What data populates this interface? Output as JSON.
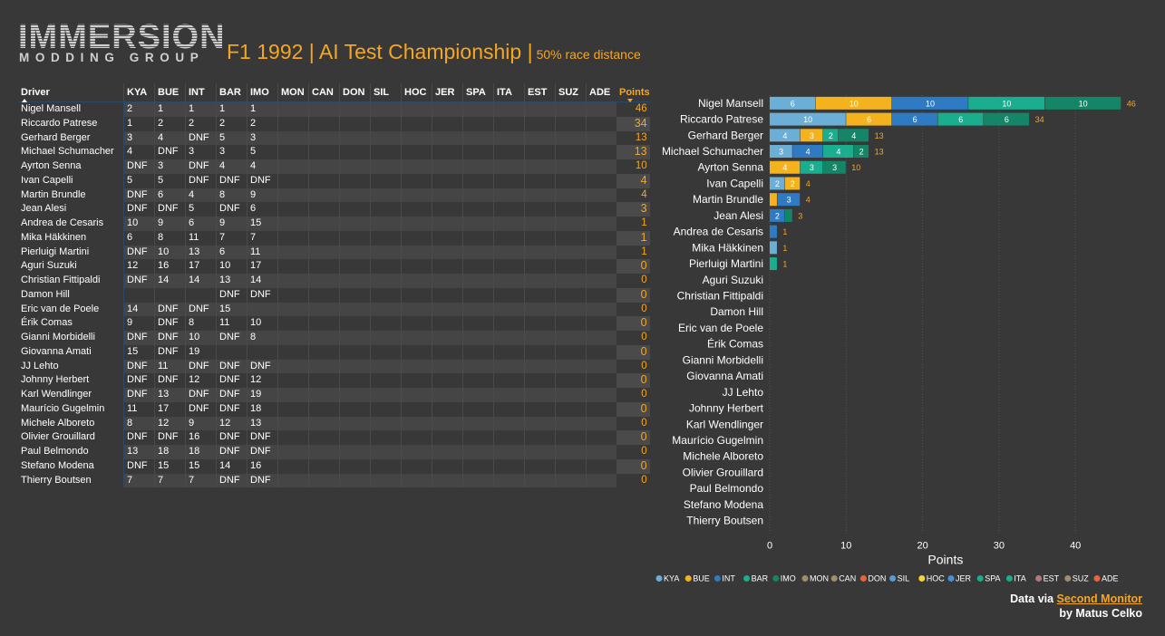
{
  "logo": {
    "line1": "IMMERSION",
    "line2": "MODDING GROUP"
  },
  "title": {
    "main": "F1 1992 | AI Test Championship |",
    "sub": "50% race distance"
  },
  "colors": {
    "accent": "#f5a623",
    "KYA": "#6baed6",
    "BUE": "#f5b21f",
    "INT": "#2e7bc4",
    "BAR": "#1aae8e",
    "IMO": "#148566",
    "MON": "#a08c6e",
    "CAN": "#a08c6e",
    "DON": "#e8643c",
    "SIL": "#5b9bd5",
    "HOC": "#f5d33c",
    "JER": "#4a90d9",
    "SPA": "#1aae8e",
    "ITA": "#1aae8e",
    "EST": "#b07a7a",
    "SUZ": "#a08c6e",
    "ADE": "#e8643c"
  },
  "table": {
    "driver_header": "Driver",
    "points_header": "Points",
    "races": [
      "KYA",
      "BUE",
      "INT",
      "BAR",
      "IMO",
      "MON",
      "CAN",
      "DON",
      "SIL",
      "HOC",
      "JER",
      "SPA",
      "ITA",
      "EST",
      "SUZ",
      "ADE"
    ],
    "rows": [
      {
        "driver": "Nigel Mansell",
        "results": [
          "2",
          "1",
          "1",
          "1",
          "1"
        ],
        "points": "46"
      },
      {
        "driver": "Riccardo Patrese",
        "results": [
          "1",
          "2",
          "2",
          "2",
          "2"
        ],
        "points": "34"
      },
      {
        "driver": "Gerhard Berger",
        "results": [
          "3",
          "4",
          "DNF",
          "5",
          "3"
        ],
        "points": "13"
      },
      {
        "driver": "Michael Schumacher",
        "results": [
          "4",
          "DNF",
          "3",
          "3",
          "5"
        ],
        "points": "13"
      },
      {
        "driver": "Ayrton Senna",
        "results": [
          "DNF",
          "3",
          "DNF",
          "4",
          "4"
        ],
        "points": "10"
      },
      {
        "driver": "Ivan Capelli",
        "results": [
          "5",
          "5",
          "DNF",
          "DNF",
          "DNF"
        ],
        "points": "4"
      },
      {
        "driver": "Martin Brundle",
        "results": [
          "DNF",
          "6",
          "4",
          "8",
          "9"
        ],
        "points": "4"
      },
      {
        "driver": "Jean Alesi",
        "results": [
          "DNF",
          "DNF",
          "5",
          "DNF",
          "6"
        ],
        "points": "3"
      },
      {
        "driver": "Andrea de Cesaris",
        "results": [
          "10",
          "9",
          "6",
          "9",
          "15"
        ],
        "points": "1"
      },
      {
        "driver": "Mika Häkkinen",
        "results": [
          "6",
          "8",
          "11",
          "7",
          "7"
        ],
        "points": "1"
      },
      {
        "driver": "Pierluigi Martini",
        "results": [
          "DNF",
          "10",
          "13",
          "6",
          "11"
        ],
        "points": "1"
      },
      {
        "driver": "Aguri Suzuki",
        "results": [
          "12",
          "16",
          "17",
          "10",
          "17"
        ],
        "points": "0"
      },
      {
        "driver": "Christian Fittipaldi",
        "results": [
          "DNF",
          "14",
          "14",
          "13",
          "14"
        ],
        "points": "0"
      },
      {
        "driver": "Damon Hill",
        "results": [
          "",
          "",
          "",
          "DNF",
          "DNF"
        ],
        "points": "0"
      },
      {
        "driver": "Eric van de Poele",
        "results": [
          "14",
          "DNF",
          "DNF",
          "15",
          ""
        ],
        "points": "0"
      },
      {
        "driver": "Érik Comas",
        "results": [
          "9",
          "DNF",
          "8",
          "11",
          "10"
        ],
        "points": "0"
      },
      {
        "driver": "Gianni Morbidelli",
        "results": [
          "DNF",
          "DNF",
          "10",
          "DNF",
          "8"
        ],
        "points": "0"
      },
      {
        "driver": "Giovanna Amati",
        "results": [
          "15",
          "DNF",
          "19",
          "",
          ""
        ],
        "points": "0"
      },
      {
        "driver": "JJ Lehto",
        "results": [
          "DNF",
          "11",
          "DNF",
          "DNF",
          "DNF"
        ],
        "points": "0"
      },
      {
        "driver": "Johnny Herbert",
        "results": [
          "DNF",
          "DNF",
          "12",
          "DNF",
          "12"
        ],
        "points": "0"
      },
      {
        "driver": "Karl Wendlinger",
        "results": [
          "DNF",
          "13",
          "DNF",
          "DNF",
          "19"
        ],
        "points": "0"
      },
      {
        "driver": "Maurício Gugelmin",
        "results": [
          "11",
          "17",
          "DNF",
          "DNF",
          "18"
        ],
        "points": "0"
      },
      {
        "driver": "Michele Alboreto",
        "results": [
          "8",
          "12",
          "9",
          "12",
          "13"
        ],
        "points": "0"
      },
      {
        "driver": "Olivier Grouillard",
        "results": [
          "DNF",
          "DNF",
          "16",
          "DNF",
          "DNF"
        ],
        "points": "0"
      },
      {
        "driver": "Paul Belmondo",
        "results": [
          "13",
          "18",
          "18",
          "DNF",
          "DNF"
        ],
        "points": "0"
      },
      {
        "driver": "Stefano Modena",
        "results": [
          "DNF",
          "15",
          "15",
          "14",
          "16"
        ],
        "points": "0"
      },
      {
        "driver": "Thierry Boutsen",
        "results": [
          "7",
          "7",
          "7",
          "DNF",
          "DNF"
        ],
        "points": "0"
      }
    ]
  },
  "chart_data": {
    "type": "bar",
    "orientation": "horizontal",
    "stacked": true,
    "categories": [
      "Nigel Mansell",
      "Riccardo Patrese",
      "Gerhard Berger",
      "Michael Schumacher",
      "Ayrton Senna",
      "Ivan Capelli",
      "Martin Brundle",
      "Jean Alesi",
      "Andrea de Cesaris",
      "Mika Häkkinen",
      "Pierluigi Martini",
      "Aguri Suzuki",
      "Christian Fittipaldi",
      "Damon Hill",
      "Eric van de Poele",
      "Érik Comas",
      "Gianni Morbidelli",
      "Giovanna Amati",
      "JJ Lehto",
      "Johnny Herbert",
      "Karl Wendlinger",
      "Maurício Gugelmin",
      "Michele Alboreto",
      "Olivier Grouillard",
      "Paul Belmondo",
      "Stefano Modena",
      "Thierry Boutsen"
    ],
    "series": [
      {
        "name": "KYA",
        "values": [
          6,
          10,
          4,
          3,
          0,
          2,
          0,
          0,
          0,
          1,
          0,
          0,
          0,
          0,
          0,
          0,
          0,
          0,
          0,
          0,
          0,
          0,
          0,
          0,
          0,
          0,
          0
        ]
      },
      {
        "name": "BUE",
        "values": [
          10,
          6,
          3,
          0,
          4,
          2,
          1,
          0,
          0,
          0,
          0,
          0,
          0,
          0,
          0,
          0,
          0,
          0,
          0,
          0,
          0,
          0,
          0,
          0,
          0,
          0,
          0
        ]
      },
      {
        "name": "INT",
        "values": [
          10,
          6,
          0,
          4,
          0,
          0,
          3,
          2,
          1,
          0,
          0,
          0,
          0,
          0,
          0,
          0,
          0,
          0,
          0,
          0,
          0,
          0,
          0,
          0,
          0,
          0,
          0
        ]
      },
      {
        "name": "BAR",
        "values": [
          10,
          6,
          2,
          4,
          3,
          0,
          0,
          0,
          0,
          0,
          1,
          0,
          0,
          0,
          0,
          0,
          0,
          0,
          0,
          0,
          0,
          0,
          0,
          0,
          0,
          0,
          0
        ]
      },
      {
        "name": "IMO",
        "values": [
          10,
          6,
          4,
          2,
          3,
          0,
          0,
          1,
          0,
          0,
          0,
          0,
          0,
          0,
          0,
          0,
          0,
          0,
          0,
          0,
          0,
          0,
          0,
          0,
          0,
          0,
          0
        ]
      },
      {
        "name": "MON",
        "values": [
          0,
          0,
          0,
          0,
          0,
          0,
          0,
          0,
          0,
          0,
          0,
          0,
          0,
          0,
          0,
          0,
          0,
          0,
          0,
          0,
          0,
          0,
          0,
          0,
          0,
          0,
          0
        ]
      },
      {
        "name": "CAN",
        "values": [
          0,
          0,
          0,
          0,
          0,
          0,
          0,
          0,
          0,
          0,
          0,
          0,
          0,
          0,
          0,
          0,
          0,
          0,
          0,
          0,
          0,
          0,
          0,
          0,
          0,
          0,
          0
        ]
      },
      {
        "name": "DON",
        "values": [
          0,
          0,
          0,
          0,
          0,
          0,
          0,
          0,
          0,
          0,
          0,
          0,
          0,
          0,
          0,
          0,
          0,
          0,
          0,
          0,
          0,
          0,
          0,
          0,
          0,
          0,
          0
        ]
      },
      {
        "name": "SIL",
        "values": [
          0,
          0,
          0,
          0,
          0,
          0,
          0,
          0,
          0,
          0,
          0,
          0,
          0,
          0,
          0,
          0,
          0,
          0,
          0,
          0,
          0,
          0,
          0,
          0,
          0,
          0,
          0
        ]
      },
      {
        "name": "HOC",
        "values": [
          0,
          0,
          0,
          0,
          0,
          0,
          0,
          0,
          0,
          0,
          0,
          0,
          0,
          0,
          0,
          0,
          0,
          0,
          0,
          0,
          0,
          0,
          0,
          0,
          0,
          0,
          0
        ]
      },
      {
        "name": "JER",
        "values": [
          0,
          0,
          0,
          0,
          0,
          0,
          0,
          0,
          0,
          0,
          0,
          0,
          0,
          0,
          0,
          0,
          0,
          0,
          0,
          0,
          0,
          0,
          0,
          0,
          0,
          0,
          0
        ]
      },
      {
        "name": "SPA",
        "values": [
          0,
          0,
          0,
          0,
          0,
          0,
          0,
          0,
          0,
          0,
          0,
          0,
          0,
          0,
          0,
          0,
          0,
          0,
          0,
          0,
          0,
          0,
          0,
          0,
          0,
          0,
          0
        ]
      },
      {
        "name": "ITA",
        "values": [
          0,
          0,
          0,
          0,
          0,
          0,
          0,
          0,
          0,
          0,
          0,
          0,
          0,
          0,
          0,
          0,
          0,
          0,
          0,
          0,
          0,
          0,
          0,
          0,
          0,
          0,
          0
        ]
      },
      {
        "name": "EST",
        "values": [
          0,
          0,
          0,
          0,
          0,
          0,
          0,
          0,
          0,
          0,
          0,
          0,
          0,
          0,
          0,
          0,
          0,
          0,
          0,
          0,
          0,
          0,
          0,
          0,
          0,
          0,
          0
        ]
      },
      {
        "name": "SUZ",
        "values": [
          0,
          0,
          0,
          0,
          0,
          0,
          0,
          0,
          0,
          0,
          0,
          0,
          0,
          0,
          0,
          0,
          0,
          0,
          0,
          0,
          0,
          0,
          0,
          0,
          0,
          0,
          0
        ]
      },
      {
        "name": "ADE",
        "values": [
          0,
          0,
          0,
          0,
          0,
          0,
          0,
          0,
          0,
          0,
          0,
          0,
          0,
          0,
          0,
          0,
          0,
          0,
          0,
          0,
          0,
          0,
          0,
          0,
          0,
          0,
          0
        ]
      }
    ],
    "totals": [
      46,
      34,
      13,
      13,
      10,
      4,
      4,
      3,
      1,
      1,
      1,
      0,
      0,
      0,
      0,
      0,
      0,
      0,
      0,
      0,
      0,
      0,
      0,
      0,
      0,
      0,
      0
    ],
    "xlabel": "Points",
    "xticks": [
      0,
      10,
      20,
      30,
      40
    ],
    "xlim": [
      0,
      47
    ],
    "grid": true,
    "legend": "bottom"
  },
  "footer": {
    "prefix": "Data via ",
    "link": "Second Monitor",
    "credit": "by Matus Celko"
  }
}
